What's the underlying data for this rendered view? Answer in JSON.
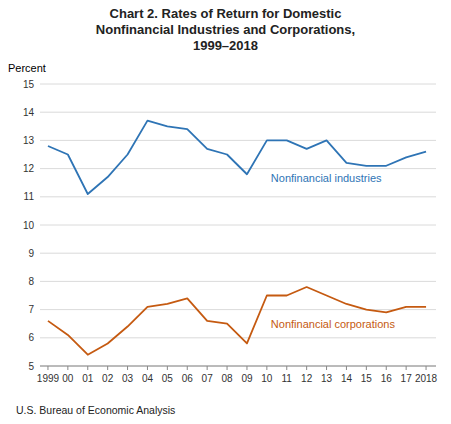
{
  "chart_data": {
    "type": "line",
    "title": "Chart 2. Rates of Return for Domestic\nNonfinancial Industries and Corporations,\n1999–2018",
    "ylabel": "Percent",
    "annotations": [
      "U.S. Bureau of Economic Analysis"
    ],
    "x": [
      1999,
      2000,
      2001,
      2002,
      2003,
      2004,
      2005,
      2006,
      2007,
      2008,
      2009,
      2010,
      2011,
      2012,
      2013,
      2014,
      2015,
      2016,
      2017,
      2018
    ],
    "series": [
      {
        "name": "Nonfinancial industries",
        "color": "#2E74B5",
        "values": [
          12.8,
          12.5,
          11.1,
          11.7,
          12.5,
          13.7,
          13.5,
          13.4,
          12.7,
          12.5,
          11.8,
          13.0,
          13.0,
          12.7,
          13.0,
          12.2,
          12.1,
          12.1,
          12.4,
          12.6
        ]
      },
      {
        "name": "Nonfinancial corporations",
        "color": "#C55A11",
        "values": [
          6.6,
          6.1,
          5.4,
          5.8,
          6.4,
          7.1,
          7.2,
          7.4,
          6.6,
          6.5,
          5.8,
          7.5,
          7.5,
          7.8,
          7.5,
          7.2,
          7.0,
          6.9,
          7.1,
          7.1
        ]
      }
    ],
    "xlim": [
      1998.6,
      2018.5
    ],
    "xticks": [
      1999,
      {
        "value": 2000,
        "label": "00"
      },
      {
        "value": 2001,
        "label": "01"
      },
      {
        "value": 2002,
        "label": "02"
      },
      {
        "value": 2003,
        "label": "03"
      },
      {
        "value": 2004,
        "label": "04"
      },
      {
        "value": 2005,
        "label": "05"
      },
      {
        "value": 2006,
        "label": "06"
      },
      {
        "value": 2007,
        "label": "07"
      },
      {
        "value": 2008,
        "label": "08"
      },
      {
        "value": 2009,
        "label": "09"
      },
      {
        "value": 2010,
        "label": "10"
      },
      {
        "value": 2011,
        "label": "11"
      },
      {
        "value": 2012,
        "label": "12"
      },
      {
        "value": 2013,
        "label": "13"
      },
      {
        "value": 2014,
        "label": "14"
      },
      {
        "value": 2015,
        "label": "15"
      },
      {
        "value": 2016,
        "label": "16"
      },
      {
        "value": 2017,
        "label": "17"
      },
      2018
    ],
    "ylim": [
      5,
      15
    ],
    "yticks": [
      5,
      6,
      7,
      8,
      9,
      10,
      11,
      12,
      13,
      14,
      15
    ],
    "grid": true
  }
}
